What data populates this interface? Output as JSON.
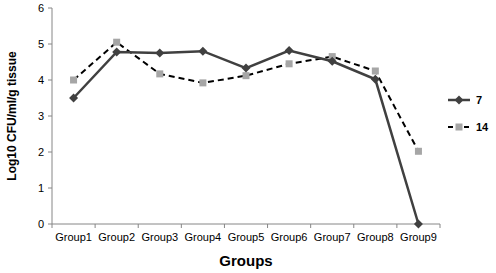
{
  "chart_data": {
    "type": "line",
    "x_label": "Groups",
    "y_label": "Log10 CFU/ml/g tissue",
    "categories": [
      "Group1",
      "Group2",
      "Group3",
      "Group4",
      "Group5",
      "Group6",
      "Group7",
      "Group8",
      "Group9"
    ],
    "series": [
      {
        "name": "7",
        "color": "#404040",
        "marker": "diamond",
        "line_style": "solid",
        "values": [
          3.5,
          4.78,
          4.75,
          4.8,
          4.33,
          4.82,
          4.52,
          4.02,
          0
        ]
      },
      {
        "name": "14",
        "color": "#a6a6a6",
        "marker": "square",
        "line_style": "dashed",
        "values": [
          4.0,
          5.05,
          4.17,
          3.92,
          4.12,
          4.45,
          4.65,
          4.25,
          2.02
        ]
      }
    ],
    "ylim": [
      0,
      6
    ],
    "yticks": [
      0,
      1,
      2,
      3,
      4,
      5,
      6
    ],
    "grid": false,
    "legend": "right"
  }
}
